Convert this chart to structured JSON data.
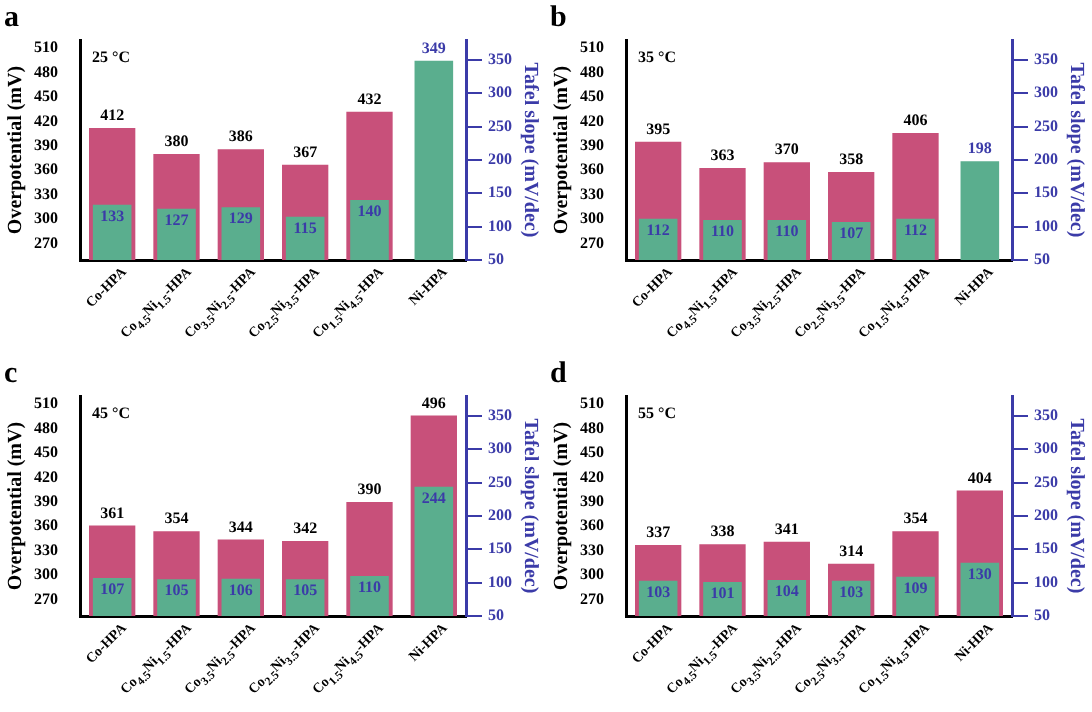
{
  "chart_data": [
    {
      "type": "bar",
      "title": "a",
      "categories": [
        "Co-HPA",
        "Co$_{4.5}$Ni$_{1.5}$-HPA",
        "Co$_{3.5}$Ni$_{2.5}$-HPA",
        "Co$_{2.5}$Ni$_{3.5}$-HPA",
        "Co$_{1.5}$Ni$_{4.5}$-HPA",
        "Ni-HPA"
      ],
      "ylabel": "Overpotential (mV)",
      "y2label": "Tafel slope (mV/dec)",
      "ylim": [
        250,
        520
      ],
      "yticks": [
        270,
        300,
        330,
        360,
        390,
        420,
        450,
        480,
        510
      ],
      "y2lim": [
        50,
        380
      ],
      "y2ticks": [
        50,
        100,
        150,
        200,
        250,
        300,
        350
      ],
      "data_labels": true,
      "annotations": [
        "25 °C"
      ],
      "grid": false,
      "legend": false,
      "series": [
        {
          "color": "#c8507a",
          "values": [
            412,
            380,
            386,
            367,
            432,
            null
          ]
        },
        {
          "color": "#5aae8e",
          "axis": "y2",
          "values": [
            133,
            127,
            129,
            115,
            140,
            349
          ]
        }
      ]
    },
    {
      "type": "bar",
      "title": "b",
      "categories": [
        "Co-HPA",
        "Co$_{4.5}$Ni$_{1.5}$-HPA",
        "Co$_{3.5}$Ni$_{2.5}$-HPA",
        "Co$_{2.5}$Ni$_{3.5}$-HPA",
        "Co$_{1.5}$Ni$_{4.5}$-HPA",
        "Ni-HPA"
      ],
      "ylabel": "Overpotential (mV)",
      "y2label": "Tafel slope (mV/dec)",
      "ylim": [
        250,
        520
      ],
      "yticks": [
        270,
        300,
        330,
        360,
        390,
        420,
        450,
        480,
        510
      ],
      "y2lim": [
        50,
        380
      ],
      "y2ticks": [
        50,
        100,
        150,
        200,
        250,
        300,
        350
      ],
      "data_labels": true,
      "annotations": [
        "35 °C"
      ],
      "grid": false,
      "legend": false,
      "series": [
        {
          "color": "#c8507a",
          "values": [
            395,
            363,
            370,
            358,
            406,
            null
          ]
        },
        {
          "color": "#5aae8e",
          "axis": "y2",
          "values": [
            112,
            110,
            110,
            107,
            112,
            198
          ]
        }
      ]
    },
    {
      "type": "bar",
      "title": "c",
      "categories": [
        "Co-HPA",
        "Co$_{4.5}$Ni$_{1.5}$-HPA",
        "Co$_{3.5}$Ni$_{2.5}$-HPA",
        "Co$_{2.5}$Ni$_{3.5}$-HPA",
        "Co$_{1.5}$Ni$_{4.5}$-HPA",
        "Ni-HPA"
      ],
      "ylabel": "Overpotential (mV)",
      "y2label": "Tafel slope (mV/dec)",
      "ylim": [
        250,
        520
      ],
      "yticks": [
        270,
        300,
        330,
        360,
        390,
        420,
        450,
        480,
        510
      ],
      "y2lim": [
        50,
        380
      ],
      "y2ticks": [
        50,
        100,
        150,
        200,
        250,
        300,
        350
      ],
      "data_labels": true,
      "annotations": [
        "45 °C"
      ],
      "grid": false,
      "legend": false,
      "series": [
        {
          "color": "#c8507a",
          "values": [
            361,
            354,
            344,
            342,
            390,
            496
          ]
        },
        {
          "color": "#5aae8e",
          "axis": "y2",
          "values": [
            107,
            105,
            106,
            105,
            110,
            244
          ]
        }
      ]
    },
    {
      "type": "bar",
      "title": "d",
      "categories": [
        "Co-HPA",
        "Co$_{4.5}$Ni$_{1.5}$-HPA",
        "Co$_{3.5}$Ni$_{2.5}$-HPA",
        "Co$_{2.5}$Ni$_{3.5}$-HPA",
        "Co$_{1.5}$Ni$_{4.5}$-HPA",
        "Ni-HPA"
      ],
      "ylabel": "Overpotential (mV)",
      "y2label": "Tafel slope (mV/dec)",
      "ylim": [
        250,
        520
      ],
      "yticks": [
        270,
        300,
        330,
        360,
        390,
        420,
        450,
        480,
        510
      ],
      "y2lim": [
        50,
        380
      ],
      "y2ticks": [
        50,
        100,
        150,
        200,
        250,
        300,
        350
      ],
      "data_labels": true,
      "annotations": [
        "55 °C"
      ],
      "grid": false,
      "legend": false,
      "series": [
        {
          "color": "#c8507a",
          "values": [
            337,
            338,
            341,
            314,
            354,
            404
          ]
        },
        {
          "color": "#5aae8e",
          "axis": "y2",
          "values": [
            103,
            101,
            104,
            103,
            109,
            130
          ]
        }
      ]
    }
  ]
}
